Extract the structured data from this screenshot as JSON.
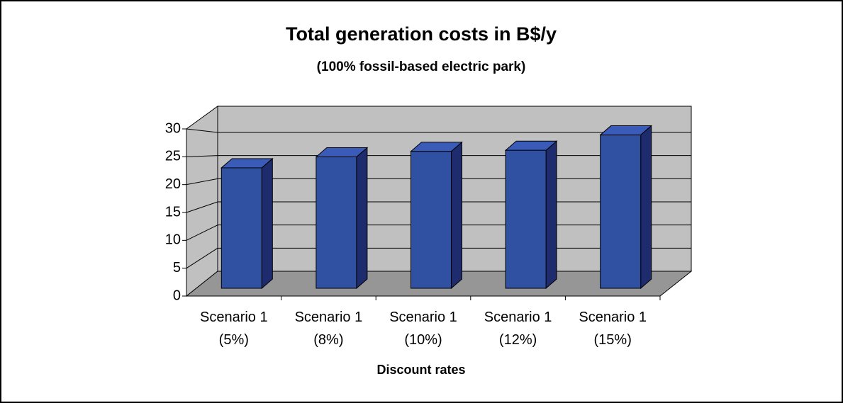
{
  "chart_data": {
    "type": "bar3d",
    "title": "Total generation costs in B$/y",
    "subtitle": "(100% fossil-based electric park)",
    "x_label": "Discount rates",
    "categories": [
      "Scenario 1 (5%)",
      "Scenario 1 (8%)",
      "Scenario 1 (10%)",
      "Scenario 1 (12%)",
      "Scenario 1 (15%)"
    ],
    "values": [
      22,
      24,
      25,
      25.2,
      28
    ],
    "color": "#3050a2",
    "ylim": [
      0,
      30
    ],
    "yticks": [
      0,
      5,
      10,
      15,
      20,
      25,
      30
    ],
    "grid": true
  }
}
